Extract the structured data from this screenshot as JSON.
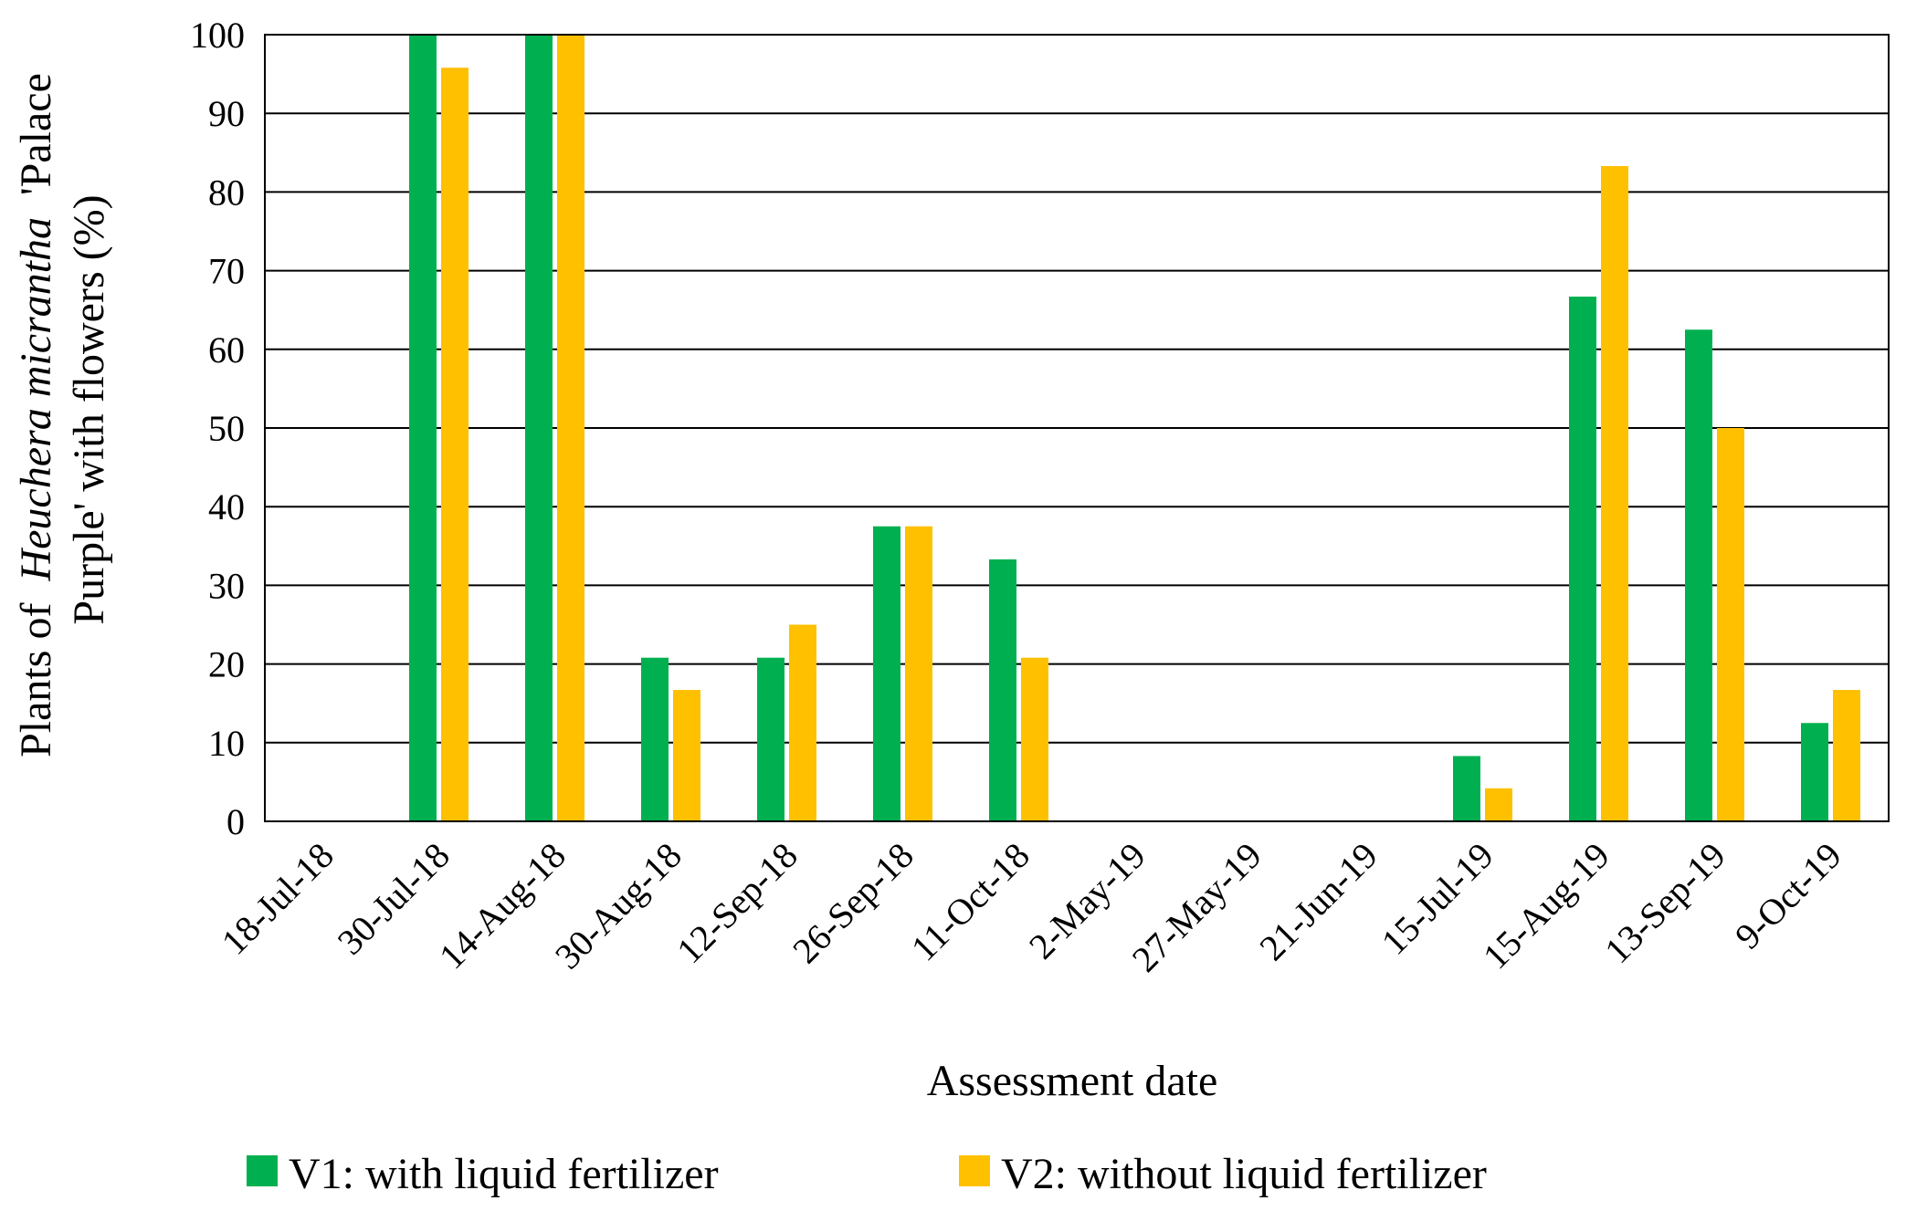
{
  "chart_data": {
    "type": "bar",
    "title": "",
    "ylabel": {
      "line1_prefix": "Plants of",
      "line1_italic": "Heuchera micrantha",
      "line1_suffix": "'Palace",
      "line2": "Purple' with flowers (%)"
    },
    "xlabel": "Assessment date",
    "ylim": [
      0,
      100
    ],
    "yticks": [
      0,
      10,
      20,
      30,
      40,
      50,
      60,
      70,
      80,
      90,
      100
    ],
    "grid": true,
    "legend_position": "bottom",
    "categories": [
      "18-Jul-18",
      "30-Jul-18",
      "14-Aug-18",
      "30-Aug-18",
      "12-Sep-18",
      "26-Sep-18",
      "11-Oct-18",
      "2-May-19",
      "27-May-19",
      "21-Jun-19",
      "15-Jul-19",
      "15-Aug-19",
      "13-Sep-19",
      "9-Oct-19"
    ],
    "series": [
      {
        "name": "V1: with liquid fertilizer",
        "color": "#00b050",
        "values": [
          0,
          100,
          100,
          20.8,
          20.8,
          37.5,
          33.3,
          0,
          0,
          0,
          8.3,
          66.7,
          62.5,
          12.5
        ]
      },
      {
        "name": "V2: without liquid fertilizer",
        "color": "#ffc000",
        "values": [
          0,
          95.8,
          100,
          16.7,
          25,
          37.5,
          20.8,
          0,
          0,
          0,
          4.2,
          83.3,
          50,
          16.7
        ]
      }
    ]
  }
}
